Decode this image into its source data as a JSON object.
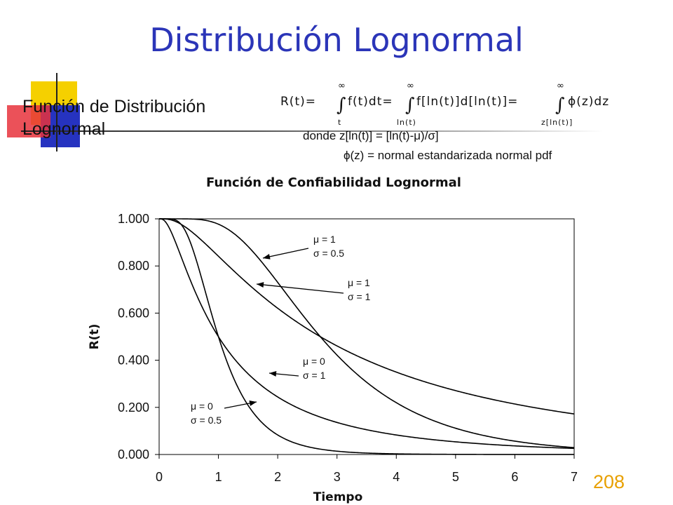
{
  "slide": {
    "title": "Distribución Lognormal",
    "subtitle_line1": "Función de Distribución",
    "subtitle_line2": "Lognormal",
    "page_number": "208"
  },
  "formula": {
    "lhs": "R(t)=",
    "sup": "∞",
    "term1": "f(t)dt=",
    "lower1": "t",
    "term2": "f[ln(t)]d[ln(t)]=",
    "lower2": "ln(t)",
    "term3": "ϕ(z)dz",
    "lower3": "z[ln(t)]",
    "def_line1": "donde z[ln(t)] = [ln(t)-μ)/σ]",
    "def_line2": "ϕ(z) = normal estandarizada normal pdf"
  },
  "colors": {
    "title": "#2b35b8",
    "page_number": "#e8a000",
    "deco_yellow": "#f5d000",
    "deco_red": "#e8323c",
    "deco_blue": "#2633c0",
    "curve": "#000000"
  },
  "chart_data": {
    "type": "line",
    "title": "Función de Confiabilidad Lognormal",
    "xlabel": "Tiempo",
    "ylabel": "R(t)",
    "xlim": [
      0,
      7
    ],
    "ylim": [
      0,
      1
    ],
    "x_ticks": [
      "0",
      "1",
      "2",
      "3",
      "4",
      "5",
      "6",
      "7"
    ],
    "y_ticks": [
      "0.000",
      "0.200",
      "0.400",
      "0.600",
      "0.800",
      "1.000"
    ],
    "grid": false,
    "legend": "none",
    "series": [
      {
        "params": {
          "mu": 1,
          "sigma": 0.5
        },
        "label_line1": "μ = 1",
        "label_line2": "σ = 0.5"
      },
      {
        "params": {
          "mu": 1,
          "sigma": 1
        },
        "label_line1": "μ = 1",
        "label_line2": "σ = 1"
      },
      {
        "params": {
          "mu": 0,
          "sigma": 1
        },
        "label_line1": "μ = 0",
        "label_line2": "σ = 1"
      },
      {
        "params": {
          "mu": 0,
          "sigma": 0.5
        },
        "label_line1": "μ = 0",
        "label_line2": "σ = 0.5"
      }
    ]
  }
}
